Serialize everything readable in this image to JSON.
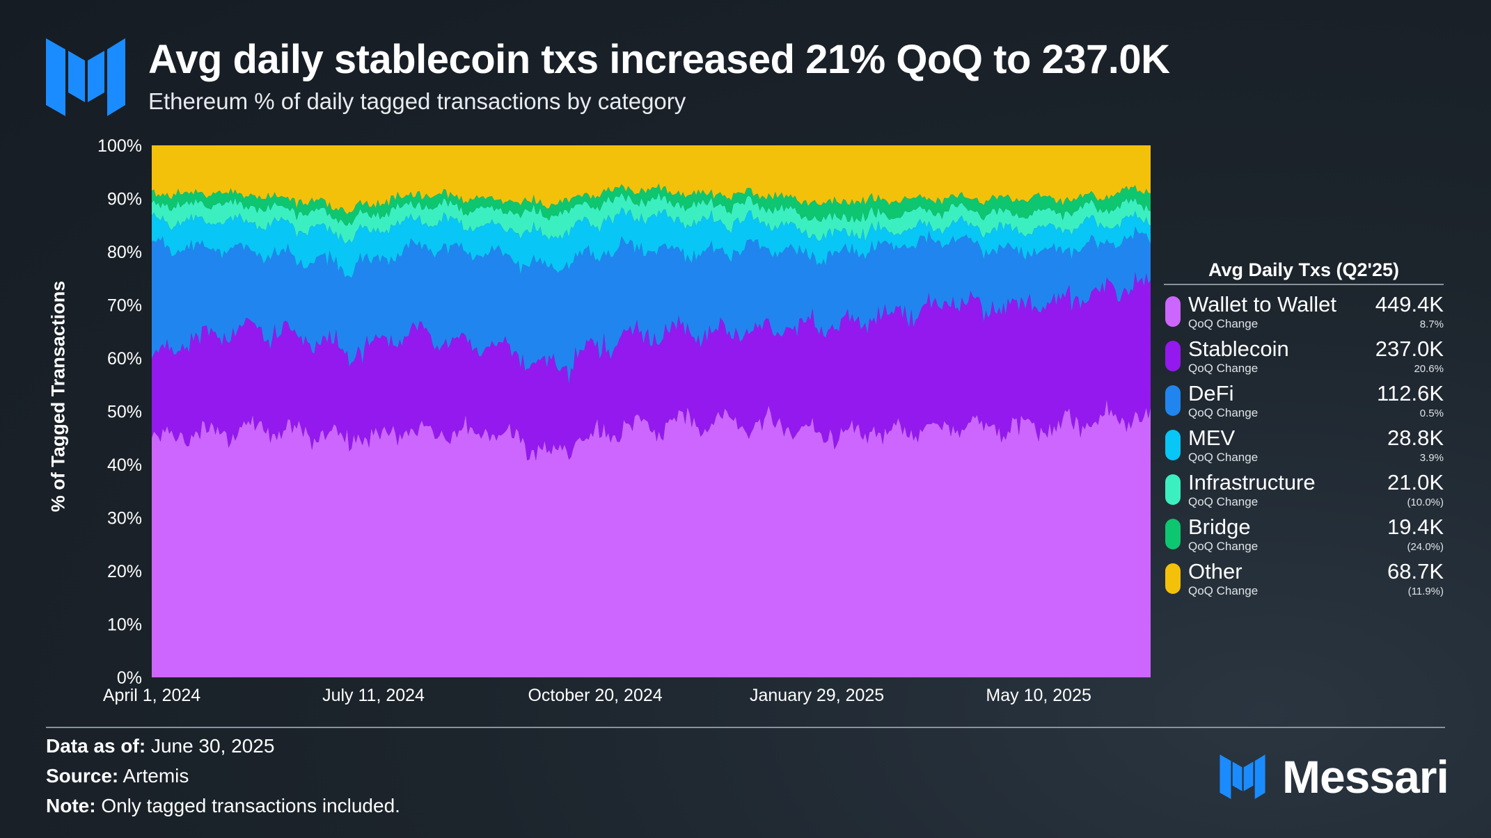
{
  "header": {
    "title": "Avg daily stablecoin txs increased 21% QoQ to 237.0K",
    "subtitle": "Ethereum % of daily tagged transactions by category"
  },
  "legend": {
    "title": "Avg Daily Txs (Q2'25)",
    "items": [
      {
        "name": "Wallet to Wallet",
        "sub": "QoQ Change",
        "value": "449.4K",
        "change": "8.7%",
        "color": "#cc66ff"
      },
      {
        "name": "Stablecoin",
        "sub": "QoQ Change",
        "value": "237.0K",
        "change": "20.6%",
        "color": "#9419ee"
      },
      {
        "name": "DeFi",
        "sub": "QoQ Change",
        "value": "112.6K",
        "change": "0.5%",
        "color": "#2185ef"
      },
      {
        "name": "MEV",
        "sub": "QoQ Change",
        "value": "28.8K",
        "change": "3.9%",
        "color": "#08c6f5"
      },
      {
        "name": "Infrastructure",
        "sub": "QoQ Change",
        "value": "21.0K",
        "change": "(10.0%)",
        "color": "#3cefc0"
      },
      {
        "name": "Bridge",
        "sub": "QoQ Change",
        "value": "19.4K",
        "change": "(24.0%)",
        "color": "#0dc66f"
      },
      {
        "name": "Other",
        "sub": "QoQ Change",
        "value": "68.7K",
        "change": "(11.9%)",
        "color": "#f4c10a"
      }
    ]
  },
  "footer": {
    "data_as_of_label": "Data as of:",
    "data_as_of_value": "June 30, 2025",
    "source_label": "Source:",
    "source_value": "Artemis",
    "note_label": "Note:",
    "note_value": "Only tagged transactions included."
  },
  "brand": {
    "name": "Messari",
    "color": "#1a8cff"
  },
  "chart_data": {
    "type": "area",
    "stacked": true,
    "normalized": true,
    "ylabel": "% of Tagged Transactions",
    "ylim": [
      0,
      100
    ],
    "y_ticks": [
      "0%",
      "10%",
      "20%",
      "30%",
      "40%",
      "50%",
      "60%",
      "70%",
      "80%",
      "90%",
      "100%"
    ],
    "x_tick_labels": [
      "April 1, 2024",
      "July 11, 2024",
      "October 20, 2024",
      "January 29, 2025",
      "May 10, 2025"
    ],
    "x_tick_dates": [
      "2024-04-01",
      "2024-07-11",
      "2024-10-20",
      "2025-01-29",
      "2025-05-10"
    ],
    "x_range": [
      "2024-04-01",
      "2025-06-30"
    ],
    "x": [
      "2024-04-01",
      "2024-05-01",
      "2024-06-01",
      "2024-07-01",
      "2024-08-01",
      "2024-09-01",
      "2024-10-01",
      "2024-11-01",
      "2024-12-01",
      "2025-01-01",
      "2025-02-01",
      "2025-03-01",
      "2025-04-01",
      "2025-05-01",
      "2025-06-01",
      "2025-06-30"
    ],
    "series": [
      {
        "name": "Wallet to Wallet",
        "color": "#cc66ff",
        "values": [
          45,
          46,
          47,
          45,
          46,
          47,
          42,
          47,
          48,
          48,
          46,
          46,
          47,
          47,
          48,
          49
        ]
      },
      {
        "name": "Stablecoin",
        "color": "#9419ee",
        "values": [
          15,
          19,
          18,
          16,
          19,
          16,
          16,
          17,
          17,
          17,
          20,
          22,
          23,
          23,
          24,
          25
        ]
      },
      {
        "name": "DeFi",
        "color": "#2185ef",
        "values": [
          21,
          16,
          14,
          16,
          16,
          17,
          19,
          17,
          15,
          16,
          13,
          13,
          12,
          10,
          9,
          9
        ]
      },
      {
        "name": "MEV",
        "color": "#08c6f5",
        "values": [
          5,
          5,
          6,
          6,
          5,
          5,
          6,
          6,
          6,
          5,
          4,
          3,
          3,
          4,
          4,
          3
        ]
      },
      {
        "name": "Infrastructure",
        "color": "#3cefc0",
        "values": [
          3,
          3,
          3,
          3,
          3,
          3,
          4,
          3,
          3,
          3,
          3,
          3,
          3,
          3,
          3,
          3
        ]
      },
      {
        "name": "Bridge",
        "color": "#0dc66f",
        "values": [
          2,
          2,
          2,
          2,
          2,
          2,
          2,
          2,
          2,
          2,
          3,
          3,
          2,
          3,
          2,
          3
        ]
      },
      {
        "name": "Other",
        "color": "#f4c10a",
        "values": [
          9,
          9,
          10,
          12,
          9,
          10,
          11,
          8,
          9,
          9,
          11,
          10,
          10,
          10,
          10,
          8
        ]
      }
    ],
    "legend_position": "right",
    "grid": false
  }
}
